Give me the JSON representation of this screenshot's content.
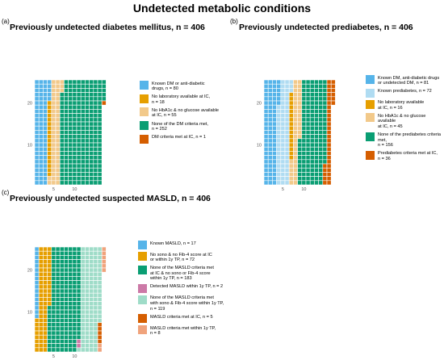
{
  "figure": {
    "title": "Undetected metabolic conditions"
  },
  "chart_data": [
    {
      "type": "waffle",
      "panel": "(a)",
      "title": "Previously undetected diabetes mellitus, n = 406",
      "grid_rows": 25,
      "y_ticks": [
        10,
        20
      ],
      "x_ticks": [
        5,
        10
      ],
      "categories": [
        {
          "name": "Known DM or anti-diabetic drugs, n = 80",
          "value": 80,
          "color": "#56b4e9"
        },
        {
          "name": "No laboratory available at IC, n = 18",
          "value": 18,
          "color": "#e69f00"
        },
        {
          "name": "No HbA1c & no glucose available at IC, n = 55",
          "value": 55,
          "color": "#f2c98a"
        },
        {
          "name": "None of the DM criteria met, n = 252",
          "value": 252,
          "color": "#0a9e73"
        },
        {
          "name": "DM criteria met at IC, n = 1",
          "value": 1,
          "color": "#d55e00"
        }
      ]
    },
    {
      "type": "waffle",
      "panel": "(b)",
      "title": "Previously undetected prediabetes, n = 406",
      "grid_rows": 25,
      "y_ticks": [
        10,
        20
      ],
      "x_ticks": [
        5,
        10
      ],
      "categories": [
        {
          "name": "Known DM, anti-diabetic drugs or undetected DM, n = 81",
          "value": 81,
          "color": "#56b4e9"
        },
        {
          "name": "Known prediabetes, n = 72",
          "value": 72,
          "color": "#b0dcf2"
        },
        {
          "name": "No laboratory available at IC, n = 16",
          "value": 16,
          "color": "#e69f00"
        },
        {
          "name": "No HbA1c & no glucose available at IC, n = 45",
          "value": 45,
          "color": "#f2c98a"
        },
        {
          "name": "None of the prediabetes criteria met, n = 156",
          "value": 156,
          "color": "#0a9e73"
        },
        {
          "name": "Prediabetes criteria met at IC, n = 36",
          "value": 36,
          "color": "#d55e00"
        }
      ]
    },
    {
      "type": "waffle",
      "panel": "(c)",
      "title": "Previously undetected suspected MASLD, n = 406",
      "grid_rows": 25,
      "y_ticks": [
        10,
        20
      ],
      "x_ticks": [
        5,
        10
      ],
      "categories": [
        {
          "name": "Known MASLD, n = 17",
          "value": 17,
          "color": "#56b4e9"
        },
        {
          "name": "No sono & no Fib-4 score at IC or within 1y TP, n = 72",
          "value": 72,
          "color": "#e69f00"
        },
        {
          "name": "None of the MASLD criteria met at IC & no sono or Fib-4 score within 1y TP, n = 183",
          "value": 183,
          "color": "#0a9e73"
        },
        {
          "name": "Detected MASLD within 1y TP, n = 2",
          "value": 2,
          "color": "#cc79a7"
        },
        {
          "name": "None of the MASLD criteria met with sono & Fib-4 score within 1y TP, n = 119",
          "value": 119,
          "color": "#9fdcc8"
        },
        {
          "name": "MASLD criteria met at IC, n = 5",
          "value": 5,
          "color": "#d55e00"
        },
        {
          "name": "MASLD criteria met within 1y TP, n = 8",
          "value": 8,
          "color": "#f0a37c"
        }
      ]
    }
  ],
  "legend_labels": [
    [
      "Known DM or anti-diabetic\ndrugs, n = 80",
      "No laboratory available at IC,\nn = 18",
      "No HbA1c & no glucose available\nat IC, n = 55",
      "None of the DM criteria met,\nn = 252",
      "DM criteria met at IC, n = 1"
    ],
    [
      "Known DM, anti-diabetic drugs\nor undetected DM, n = 81",
      "Known prediabetes, n = 72",
      "No laboratory available\nat IC, n = 16",
      "No HbA1c & no glucose available\nat IC, n = 45",
      "None of the prediabetes criteria met,\nn = 156",
      "Prediabetes criteria met at IC,\nn = 36"
    ],
    [
      "Known MASLD, n = 17",
      "No sono & no Fib-4 score at IC\nor within 1y TP, n = 72",
      "None of the MASLD criteria met\nat IC & no sono or Fib-4 score\nwithin 1y TP, n = 183",
      "Detected MASLD within 1y TP, n = 2",
      "None of the MASLD criteria met\nwith sono & Fib-4 score within 1y TP,\nn = 119",
      "MASLD criteria met at IC, n = 5",
      "MASLD criteria met within 1y TP,\nn = 8"
    ]
  ]
}
